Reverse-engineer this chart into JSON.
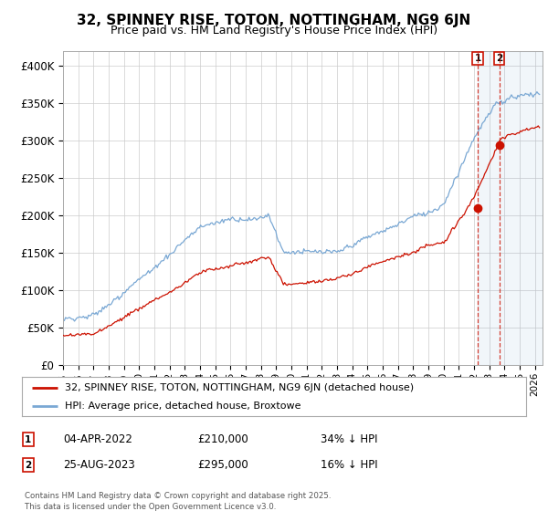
{
  "title": "32, SPINNEY RISE, TOTON, NOTTINGHAM, NG9 6JN",
  "subtitle": "Price paid vs. HM Land Registry's House Price Index (HPI)",
  "title_fontsize": 11,
  "subtitle_fontsize": 9,
  "ylabel_ticks": [
    "£0",
    "£50K",
    "£100K",
    "£150K",
    "£200K",
    "£250K",
    "£300K",
    "£350K",
    "£400K"
  ],
  "ytick_values": [
    0,
    50000,
    100000,
    150000,
    200000,
    250000,
    300000,
    350000,
    400000
  ],
  "ylim": [
    0,
    420000
  ],
  "xlim_start": 1995.0,
  "xlim_end": 2026.5,
  "xtick_years": [
    1995,
    1996,
    1997,
    1998,
    1999,
    2000,
    2001,
    2002,
    2003,
    2004,
    2005,
    2006,
    2007,
    2008,
    2009,
    2010,
    2011,
    2012,
    2013,
    2014,
    2015,
    2016,
    2017,
    2018,
    2019,
    2020,
    2021,
    2022,
    2023,
    2024,
    2025,
    2026
  ],
  "hpi_color": "#7aa8d4",
  "price_color": "#cc1100",
  "vline_color": "#cc1100",
  "background_color": "#ffffff",
  "grid_color": "#cccccc",
  "legend_label_price": "32, SPINNEY RISE, TOTON, NOTTINGHAM, NG9 6JN (detached house)",
  "legend_label_hpi": "HPI: Average price, detached house, Broxtowe",
  "transaction1_date": "04-APR-2022",
  "transaction1_price": "£210,000",
  "transaction1_hpi": "34% ↓ HPI",
  "transaction2_date": "25-AUG-2023",
  "transaction2_price": "£295,000",
  "transaction2_hpi": "16% ↓ HPI",
  "footnote": "Contains HM Land Registry data © Crown copyright and database right 2025.\nThis data is licensed under the Open Government Licence v3.0.",
  "t1_year": 2022.25,
  "t2_year": 2023.65,
  "t1_price_paid": 210000,
  "t2_price_paid": 295000,
  "shade_after_t1": true
}
